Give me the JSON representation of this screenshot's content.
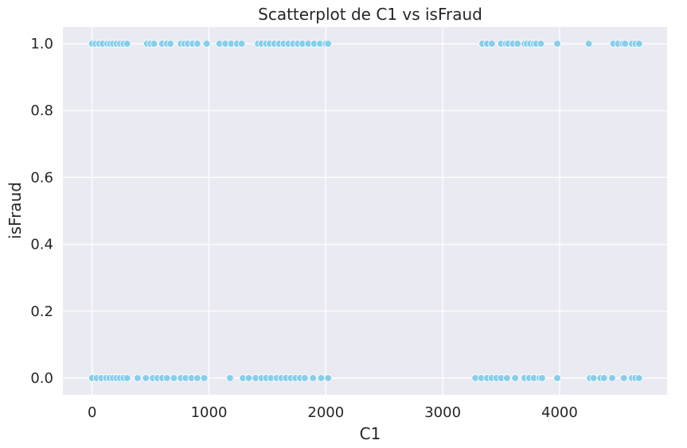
{
  "chart_data": {
    "type": "scatter",
    "title": "Scatterplot de C1 vs isFraud",
    "xlabel": "C1",
    "ylabel": "isFraud",
    "xlim": [
      -250,
      4920
    ],
    "ylim": [
      -0.05,
      1.05
    ],
    "xticks": [
      0,
      1000,
      2000,
      3000,
      4000
    ],
    "xtick_labels": [
      "0",
      "1000",
      "2000",
      "3000",
      "4000"
    ],
    "yticks": [
      0.0,
      0.2,
      0.4,
      0.6,
      0.8,
      1.0
    ],
    "ytick_labels": [
      "0.0",
      "0.2",
      "0.4",
      "0.6",
      "0.8",
      "1.0"
    ],
    "grid": true,
    "legend": "none",
    "colors": {
      "plot_background": "#eaeaf2",
      "grid": "#ffffff",
      "marker": "#87ceeb",
      "marker_edge": "#ffffff"
    },
    "series": [
      {
        "points": [
          [
            0,
            1
          ],
          [
            30,
            1
          ],
          [
            60,
            1
          ],
          [
            90,
            1
          ],
          [
            130,
            1
          ],
          [
            155,
            1
          ],
          [
            180,
            1
          ],
          [
            210,
            1
          ],
          [
            240,
            1
          ],
          [
            270,
            1
          ],
          [
            300,
            1
          ],
          [
            470,
            1
          ],
          [
            500,
            1
          ],
          [
            530,
            1
          ],
          [
            600,
            1
          ],
          [
            640,
            1
          ],
          [
            670,
            1
          ],
          [
            760,
            1
          ],
          [
            790,
            1
          ],
          [
            820,
            1
          ],
          [
            860,
            1
          ],
          [
            900,
            1
          ],
          [
            980,
            1
          ],
          [
            1090,
            1
          ],
          [
            1140,
            1
          ],
          [
            1190,
            1
          ],
          [
            1240,
            1
          ],
          [
            1280,
            1
          ],
          [
            1420,
            1
          ],
          [
            1450,
            1
          ],
          [
            1490,
            1
          ],
          [
            1520,
            1
          ],
          [
            1560,
            1
          ],
          [
            1600,
            1
          ],
          [
            1640,
            1
          ],
          [
            1680,
            1
          ],
          [
            1720,
            1
          ],
          [
            1760,
            1
          ],
          [
            1800,
            1
          ],
          [
            1850,
            1
          ],
          [
            1900,
            1
          ],
          [
            1950,
            1
          ],
          [
            2000,
            1
          ],
          [
            2020,
            1
          ],
          [
            3340,
            1
          ],
          [
            3380,
            1
          ],
          [
            3420,
            1
          ],
          [
            3500,
            1
          ],
          [
            3540,
            1
          ],
          [
            3560,
            1
          ],
          [
            3600,
            1
          ],
          [
            3640,
            1
          ],
          [
            3700,
            1
          ],
          [
            3720,
            1
          ],
          [
            3750,
            1
          ],
          [
            3780,
            1
          ],
          [
            3800,
            1
          ],
          [
            3840,
            1
          ],
          [
            3980,
            1
          ],
          [
            4250,
            1
          ],
          [
            4460,
            1
          ],
          [
            4500,
            1
          ],
          [
            4540,
            1
          ],
          [
            4560,
            1
          ],
          [
            4620,
            1
          ],
          [
            4650,
            1
          ],
          [
            4680,
            1
          ],
          [
            0,
            0
          ],
          [
            40,
            0
          ],
          [
            80,
            0
          ],
          [
            120,
            0
          ],
          [
            150,
            0
          ],
          [
            180,
            0
          ],
          [
            210,
            0
          ],
          [
            240,
            0
          ],
          [
            270,
            0
          ],
          [
            300,
            0
          ],
          [
            390,
            0
          ],
          [
            460,
            0
          ],
          [
            520,
            0
          ],
          [
            560,
            0
          ],
          [
            600,
            0
          ],
          [
            640,
            0
          ],
          [
            700,
            0
          ],
          [
            760,
            0
          ],
          [
            800,
            0
          ],
          [
            850,
            0
          ],
          [
            900,
            0
          ],
          [
            960,
            0
          ],
          [
            1180,
            0
          ],
          [
            1290,
            0
          ],
          [
            1340,
            0
          ],
          [
            1400,
            0
          ],
          [
            1450,
            0
          ],
          [
            1490,
            0
          ],
          [
            1530,
            0
          ],
          [
            1580,
            0
          ],
          [
            1620,
            0
          ],
          [
            1660,
            0
          ],
          [
            1700,
            0
          ],
          [
            1740,
            0
          ],
          [
            1780,
            0
          ],
          [
            1820,
            0
          ],
          [
            1890,
            0
          ],
          [
            1960,
            0
          ],
          [
            2020,
            0
          ],
          [
            3280,
            0
          ],
          [
            3330,
            0
          ],
          [
            3380,
            0
          ],
          [
            3420,
            0
          ],
          [
            3460,
            0
          ],
          [
            3500,
            0
          ],
          [
            3550,
            0
          ],
          [
            3620,
            0
          ],
          [
            3700,
            0
          ],
          [
            3740,
            0
          ],
          [
            3780,
            0
          ],
          [
            3830,
            0
          ],
          [
            3850,
            0
          ],
          [
            3980,
            0
          ],
          [
            4260,
            0
          ],
          [
            4290,
            0
          ],
          [
            4350,
            0
          ],
          [
            4380,
            0
          ],
          [
            4450,
            0
          ],
          [
            4550,
            0
          ],
          [
            4620,
            0
          ],
          [
            4650,
            0
          ],
          [
            4680,
            0
          ]
        ]
      }
    ]
  }
}
